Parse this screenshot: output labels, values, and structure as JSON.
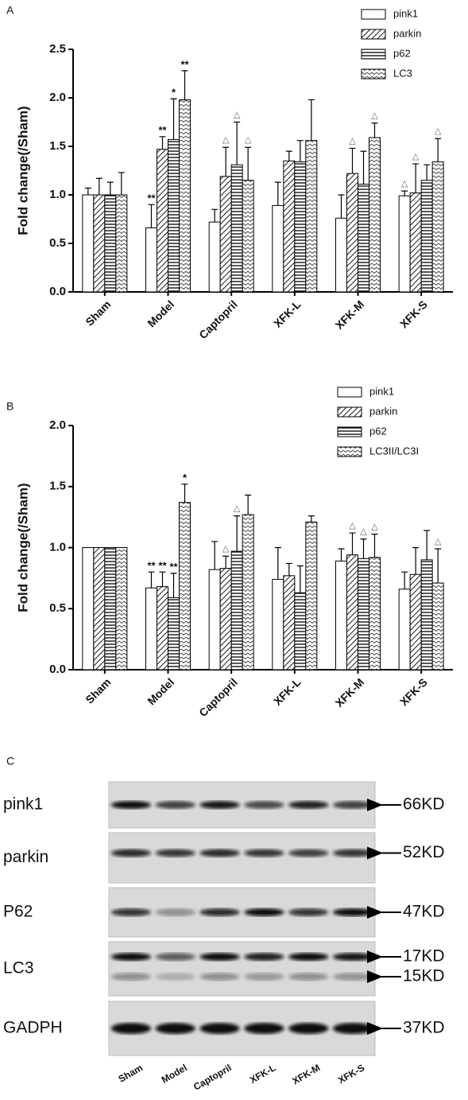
{
  "chart_data": [
    {
      "type": "bar",
      "panel": "A",
      "y_label": "Fold change(/Sham)",
      "color": "#000000",
      "categories": [
        "Sham",
        "Model",
        "Captopril",
        "XFK-L",
        "XFK-M",
        "XFK-S"
      ],
      "ylim": [
        0,
        2.5
      ],
      "yticks": [
        {
          "value": 0,
          "label": "0.0"
        },
        {
          "value": 0.5,
          "label": "0.5"
        },
        {
          "value": 1,
          "label": "1.0"
        },
        {
          "value": 1.5,
          "label": "1.5"
        },
        {
          "value": 2,
          "label": "2.0"
        },
        {
          "value": 2.5,
          "label": "2.5"
        }
      ],
      "legend": "top-right",
      "series": [
        {
          "name": "pink1",
          "pattern": "none",
          "values": [
            1.0,
            0.66,
            0.72,
            0.89,
            0.76,
            0.99
          ],
          "errors": [
            0.07,
            0.24,
            0.13,
            0.24,
            0.24,
            0.05
          ],
          "annotations": [
            null,
            "**",
            null,
            null,
            null,
            "△"
          ]
        },
        {
          "name": "parkin",
          "pattern": "hatch",
          "values": [
            1.0,
            1.47,
            1.19,
            1.35,
            1.22,
            1.02
          ],
          "errors": [
            0.17,
            0.13,
            0.3,
            0.1,
            0.26,
            0.3
          ],
          "annotations": [
            null,
            "**",
            "△",
            null,
            "△",
            "△"
          ]
        },
        {
          "name": "p62",
          "pattern": "hlines",
          "values": [
            1.0,
            1.57,
            1.31,
            1.34,
            1.11,
            1.15
          ],
          "errors": [
            0.13,
            0.42,
            0.44,
            0.22,
            0.34,
            0.16
          ],
          "annotations": [
            null,
            "*",
            "△",
            null,
            null,
            null
          ]
        },
        {
          "name": "LC3",
          "pattern": "zigzag",
          "values": [
            1.0,
            1.98,
            1.15,
            1.56,
            1.59,
            1.34
          ],
          "errors": [
            0.23,
            0.3,
            0.34,
            0.42,
            0.15,
            0.24
          ],
          "annotations": [
            null,
            "**",
            "△",
            null,
            "△",
            "△"
          ]
        }
      ]
    },
    {
      "type": "bar",
      "panel": "B",
      "y_label": "Fold change(/Sham)",
      "color": "#000000",
      "categories": [
        "Sham",
        "Model",
        "Captopril",
        "XFK-L",
        "XFK-M",
        "XFK-S"
      ],
      "ylim": [
        0,
        2.0
      ],
      "yticks": [
        {
          "value": 0,
          "label": "0.0"
        },
        {
          "value": 0.5,
          "label": "0.5"
        },
        {
          "value": 1,
          "label": "1.0"
        },
        {
          "value": 1.5,
          "label": "1.5"
        },
        {
          "value": 2,
          "label": "2.0"
        }
      ],
      "legend": "top-right",
      "series": [
        {
          "name": "pink1",
          "pattern": "none",
          "values": [
            1.0,
            0.67,
            0.82,
            0.74,
            0.89,
            0.66
          ],
          "errors": [
            0,
            0.13,
            0.23,
            0.26,
            0.1,
            0.14
          ],
          "annotations": [
            null,
            "**",
            null,
            null,
            null,
            null
          ]
        },
        {
          "name": "parkin",
          "pattern": "hatch",
          "values": [
            1.0,
            0.68,
            0.83,
            0.77,
            0.94,
            0.78
          ],
          "errors": [
            0,
            0.12,
            0.1,
            0.1,
            0.18,
            0.22
          ],
          "annotations": [
            null,
            "**",
            "△",
            null,
            "△",
            null
          ]
        },
        {
          "name": "p62",
          "pattern": "hlines",
          "values": [
            1.0,
            0.59,
            0.97,
            0.63,
            0.91,
            0.9
          ],
          "errors": [
            0,
            0.2,
            0.29,
            0.22,
            0.16,
            0.24
          ],
          "annotations": [
            null,
            "**",
            "△",
            null,
            "△",
            null
          ]
        },
        {
          "name": "LC3II/LC3I",
          "pattern": "zigzag",
          "values": [
            1.0,
            1.37,
            1.27,
            1.21,
            0.92,
            0.71
          ],
          "errors": [
            0,
            0.15,
            0.16,
            0.05,
            0.19,
            0.28
          ],
          "annotations": [
            null,
            "*",
            null,
            null,
            "△",
            "△"
          ]
        }
      ]
    }
  ],
  "blot": {
    "panel": "C",
    "proteins": [
      {
        "name": "pink1",
        "sizes": [
          "66KD"
        ]
      },
      {
        "name": "parkin",
        "sizes": [
          "52KD"
        ]
      },
      {
        "name": "P62",
        "sizes": [
          "47KD"
        ]
      },
      {
        "name": "LC3",
        "sizes": [
          "17KD",
          "15KD"
        ]
      },
      {
        "name": "GADPH",
        "sizes": [
          "37KD"
        ]
      }
    ],
    "lanes": [
      "Sham",
      "Model",
      "Captopril",
      "XFK-L",
      "XFK-M",
      "XFK-S"
    ]
  }
}
